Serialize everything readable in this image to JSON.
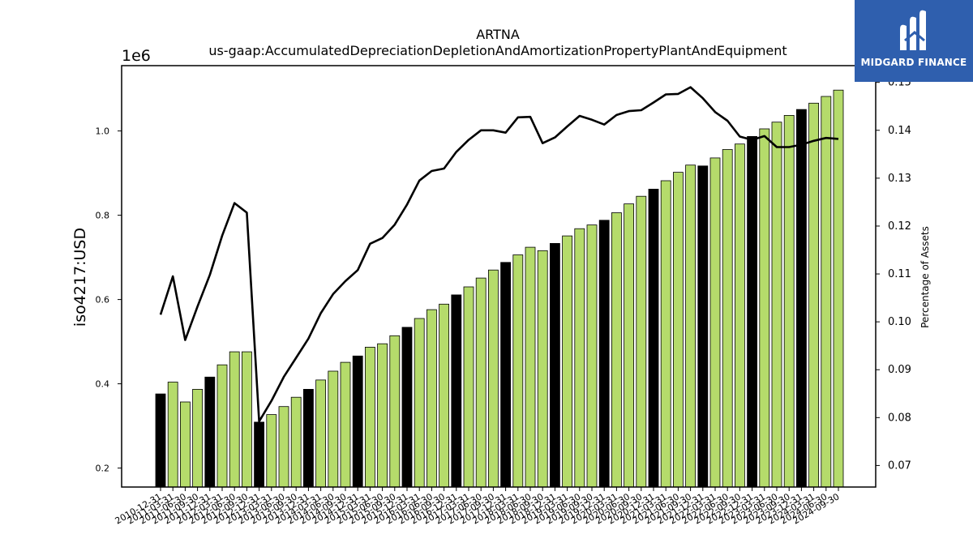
{
  "chart_data": {
    "type": "bar",
    "title": "ARTNA",
    "subtitle": "us-gaap:AccumulatedDepreciationDepletionAndAmortizationPropertyPlantAndEquipment",
    "ylabel": "iso4217:USD",
    "y2label": "Percentage of Assets",
    "y_offset_label": "1e6",
    "ylim": [
      0.155,
      1.155
    ],
    "y2lim": [
      0.0655,
      0.1535
    ],
    "y_ticks": [
      "0.2",
      "0.4",
      "0.6",
      "0.8",
      "1.0"
    ],
    "y2_ticks": [
      "0.07",
      "0.08",
      "0.09",
      "0.10",
      "0.11",
      "0.12",
      "0.13",
      "0.14",
      "0.15"
    ],
    "categories": [
      "2010-12-31",
      "2011-03-31",
      "2011-06-30",
      "2011-09-30",
      "2011-12-31",
      "2012-03-31",
      "2012-06-30",
      "2012-09-30",
      "2012-12-31",
      "2013-03-31",
      "2013-06-30",
      "2013-09-30",
      "2013-12-31",
      "2014-03-31",
      "2014-06-30",
      "2014-09-30",
      "2014-12-31",
      "2015-03-31",
      "2015-06-30",
      "2015-09-30",
      "2015-12-31",
      "2016-03-31",
      "2016-06-30",
      "2016-09-30",
      "2016-12-31",
      "2017-03-31",
      "2017-06-30",
      "2017-09-30",
      "2017-12-31",
      "2018-03-31",
      "2018-06-30",
      "2018-09-30",
      "2018-12-31",
      "2019-03-31",
      "2019-06-30",
      "2019-09-30",
      "2019-12-31",
      "2020-03-31",
      "2020-06-30",
      "2020-09-30",
      "2020-12-31",
      "2021-03-31",
      "2021-06-30",
      "2021-09-30",
      "2021-12-31",
      "2022-03-31",
      "2022-06-30",
      "2022-09-30",
      "2022-12-31",
      "2023-03-31",
      "2023-06-30",
      "2023-09-30",
      "2023-12-31",
      "2024-03-31",
      "2024-06-30",
      "2024-09-30"
    ],
    "series": [
      {
        "kind": "bar",
        "values": [
          0.376,
          0.404,
          0.357,
          0.387,
          0.416,
          0.445,
          0.476,
          0.476,
          0.309,
          0.327,
          0.346,
          0.368,
          0.387,
          0.409,
          0.43,
          0.451,
          0.466,
          0.487,
          0.495,
          0.514,
          0.534,
          0.555,
          0.576,
          0.589,
          0.611,
          0.63,
          0.651,
          0.67,
          0.688,
          0.706,
          0.724,
          0.716,
          0.733,
          0.751,
          0.768,
          0.777,
          0.788,
          0.806,
          0.827,
          0.845,
          0.862,
          0.882,
          0.902,
          0.919,
          0.917,
          0.936,
          0.956,
          0.969,
          0.987,
          1.005,
          1.021,
          1.037,
          1.051,
          1.066,
          1.082,
          1.097
        ],
        "color_annual": "#000000",
        "color_quarter": "#b5db6b"
      },
      {
        "kind": "line",
        "axis": "right",
        "color": "#000000",
        "values": [
          0.1015,
          0.1095,
          0.0962,
          0.1032,
          0.1098,
          0.118,
          0.1248,
          0.1228,
          0.0792,
          0.0835,
          0.0885,
          0.0925,
          0.0965,
          0.1018,
          0.1058,
          0.1085,
          0.1108,
          0.1163,
          0.1175,
          0.1203,
          0.1245,
          0.1295,
          0.1315,
          0.132,
          0.1355,
          0.138,
          0.14,
          0.14,
          0.1395,
          0.1427,
          0.1428,
          0.1373,
          0.1385,
          0.1408,
          0.143,
          0.1422,
          0.1412,
          0.1432,
          0.144,
          0.1442,
          0.1458,
          0.1475,
          0.1476,
          0.149,
          0.1467,
          0.1438,
          0.142,
          0.1387,
          0.138,
          0.1388,
          0.1365,
          0.1365,
          0.137,
          0.1378,
          0.1384,
          0.1382
        ]
      }
    ]
  },
  "logo": {
    "text": "MIDGARD FINANCE",
    "bg_color": "#2f5fae"
  }
}
